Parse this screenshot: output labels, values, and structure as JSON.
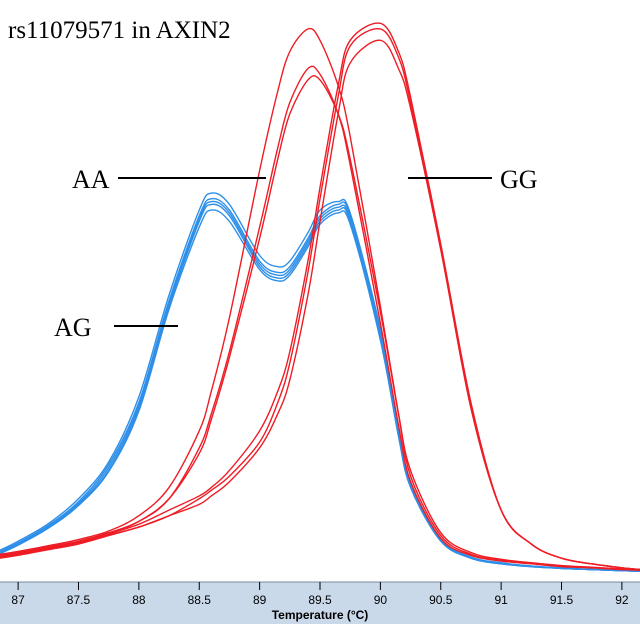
{
  "chart_data": {
    "type": "line",
    "title": "rs11079571 in AXIN2",
    "subtitle": "",
    "xlabel": "Temperature (°C)",
    "ylabel": "",
    "xlim": [
      86.85,
      92.15
    ],
    "ylim": [
      0,
      1.0
    ],
    "x_ticks": [
      87,
      87.5,
      88,
      88.5,
      89,
      89.5,
      90,
      90.5,
      91,
      91.5,
      92
    ],
    "grid": false,
    "legend": "none",
    "colors": {
      "AA": "#ee1c24",
      "GG": "#ee1c24",
      "AG": "#2e8fe8",
      "axis_bar": "#c9d9ea"
    },
    "genotype_labels": [
      {
        "text": "AA",
        "target": "AA"
      },
      {
        "text": "GG",
        "target": "GG"
      },
      {
        "text": "AG",
        "target": "AG"
      }
    ],
    "x": [
      86.85,
      87.0,
      87.25,
      87.5,
      87.75,
      88.0,
      88.25,
      88.5,
      88.6,
      88.75,
      89.0,
      89.15,
      89.25,
      89.4,
      89.5,
      89.65,
      89.75,
      90.0,
      90.15,
      90.25,
      90.5,
      90.75,
      91.0,
      91.25,
      91.5,
      91.75,
      92.0,
      92.15
    ],
    "series": [
      {
        "group": "AA",
        "values": [
          0.04,
          0.045,
          0.055,
          0.065,
          0.08,
          0.1,
          0.14,
          0.23,
          0.29,
          0.4,
          0.62,
          0.76,
          0.84,
          0.9,
          0.89,
          0.82,
          0.73,
          0.45,
          0.27,
          0.17,
          0.07,
          0.04,
          0.03,
          0.025,
          0.02,
          0.018,
          0.015,
          0.014
        ]
      },
      {
        "group": "AA",
        "values": [
          0.042,
          0.047,
          0.057,
          0.068,
          0.083,
          0.11,
          0.16,
          0.26,
          0.33,
          0.46,
          0.72,
          0.86,
          0.93,
          0.97,
          0.95,
          0.87,
          0.78,
          0.48,
          0.29,
          0.18,
          0.075,
          0.042,
          0.031,
          0.026,
          0.021,
          0.018,
          0.015,
          0.014
        ]
      },
      {
        "group": "AA",
        "values": [
          0.038,
          0.043,
          0.053,
          0.063,
          0.078,
          0.1,
          0.14,
          0.22,
          0.28,
          0.39,
          0.6,
          0.74,
          0.82,
          0.88,
          0.88,
          0.82,
          0.74,
          0.47,
          0.29,
          0.19,
          0.08,
          0.045,
          0.033,
          0.027,
          0.022,
          0.019,
          0.016,
          0.014
        ]
      },
      {
        "group": "GG",
        "values": [
          0.035,
          0.04,
          0.05,
          0.06,
          0.075,
          0.09,
          0.11,
          0.13,
          0.145,
          0.17,
          0.23,
          0.29,
          0.35,
          0.5,
          0.63,
          0.82,
          0.91,
          0.95,
          0.9,
          0.83,
          0.58,
          0.3,
          0.12,
          0.06,
          0.035,
          0.025,
          0.018,
          0.015
        ]
      },
      {
        "group": "GG",
        "values": [
          0.037,
          0.042,
          0.052,
          0.063,
          0.078,
          0.095,
          0.12,
          0.145,
          0.16,
          0.19,
          0.26,
          0.33,
          0.4,
          0.56,
          0.69,
          0.87,
          0.95,
          0.98,
          0.93,
          0.85,
          0.59,
          0.31,
          0.12,
          0.06,
          0.035,
          0.025,
          0.018,
          0.015
        ]
      },
      {
        "group": "GG",
        "values": [
          0.036,
          0.041,
          0.051,
          0.061,
          0.076,
          0.09,
          0.11,
          0.14,
          0.155,
          0.18,
          0.24,
          0.31,
          0.38,
          0.54,
          0.67,
          0.85,
          0.94,
          0.97,
          0.92,
          0.84,
          0.585,
          0.305,
          0.12,
          0.06,
          0.035,
          0.025,
          0.018,
          0.015
        ]
      },
      {
        "group": "AG",
        "values": [
          0.045,
          0.06,
          0.09,
          0.13,
          0.19,
          0.3,
          0.48,
          0.63,
          0.66,
          0.64,
          0.55,
          0.53,
          0.54,
          0.59,
          0.63,
          0.65,
          0.63,
          0.42,
          0.25,
          0.16,
          0.065,
          0.035,
          0.025,
          0.02,
          0.017,
          0.015,
          0.013,
          0.012
        ]
      },
      {
        "group": "AG",
        "values": [
          0.047,
          0.062,
          0.093,
          0.135,
          0.2,
          0.31,
          0.49,
          0.64,
          0.67,
          0.65,
          0.56,
          0.54,
          0.55,
          0.6,
          0.64,
          0.66,
          0.64,
          0.43,
          0.26,
          0.165,
          0.067,
          0.036,
          0.026,
          0.021,
          0.017,
          0.015,
          0.013,
          0.012
        ]
      },
      {
        "group": "AG",
        "values": [
          0.049,
          0.065,
          0.096,
          0.14,
          0.205,
          0.32,
          0.5,
          0.65,
          0.68,
          0.66,
          0.57,
          0.55,
          0.56,
          0.61,
          0.65,
          0.665,
          0.645,
          0.44,
          0.265,
          0.17,
          0.07,
          0.037,
          0.027,
          0.021,
          0.018,
          0.015,
          0.013,
          0.012
        ]
      },
      {
        "group": "AG",
        "values": [
          0.043,
          0.058,
          0.088,
          0.128,
          0.188,
          0.295,
          0.475,
          0.62,
          0.65,
          0.63,
          0.545,
          0.525,
          0.535,
          0.585,
          0.625,
          0.645,
          0.625,
          0.425,
          0.255,
          0.162,
          0.066,
          0.035,
          0.025,
          0.02,
          0.017,
          0.015,
          0.013,
          0.012
        ]
      },
      {
        "group": "AG",
        "values": [
          0.046,
          0.061,
          0.091,
          0.132,
          0.195,
          0.305,
          0.485,
          0.635,
          0.665,
          0.645,
          0.555,
          0.535,
          0.545,
          0.595,
          0.635,
          0.655,
          0.635,
          0.435,
          0.26,
          0.168,
          0.068,
          0.036,
          0.026,
          0.021,
          0.017,
          0.015,
          0.013,
          0.012
        ]
      }
    ]
  }
}
